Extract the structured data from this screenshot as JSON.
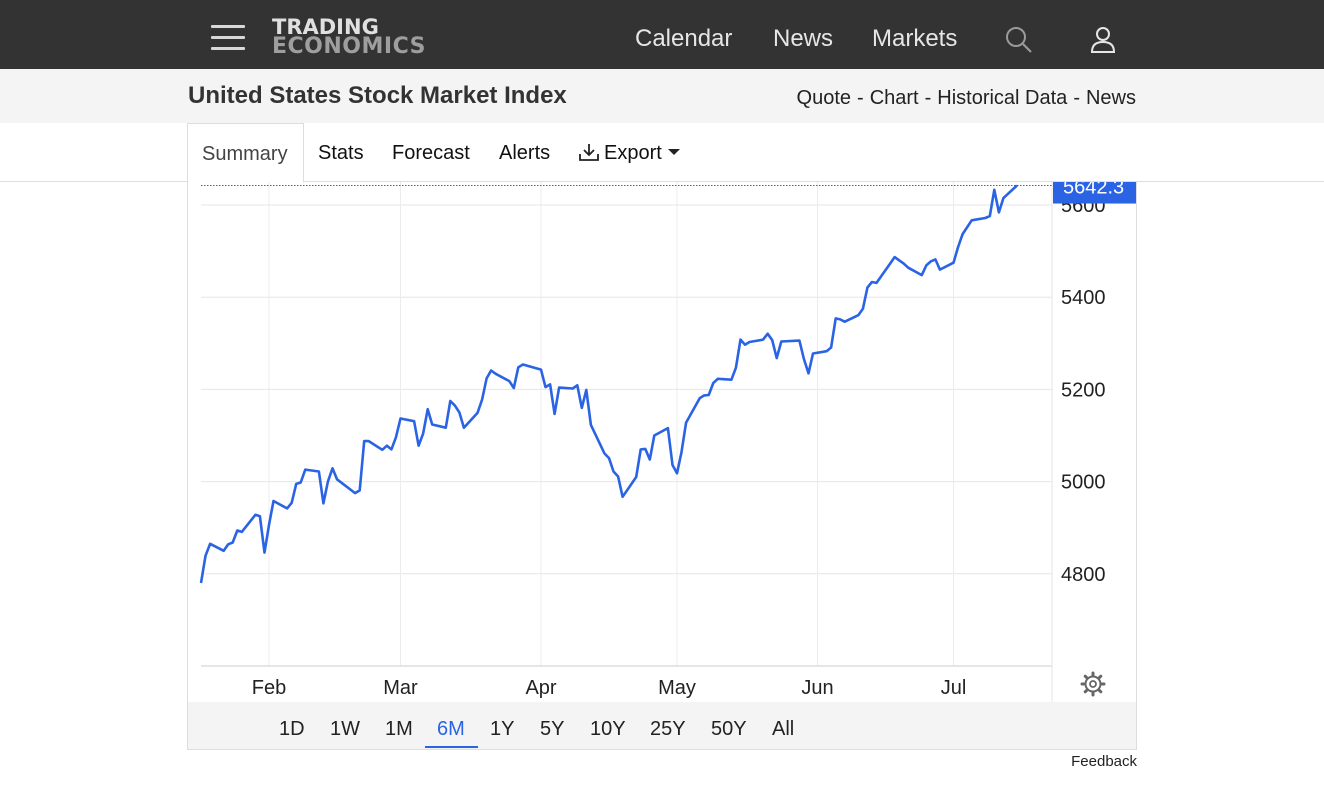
{
  "navbar": {
    "logo_line1": "TRADING",
    "logo_line2": "ECONOMICS",
    "links": [
      "Calendar",
      "News",
      "Markets"
    ]
  },
  "page": {
    "title": "United States Stock Market Index",
    "quick_links": [
      "Quote",
      "Chart",
      "Historical Data",
      "News"
    ]
  },
  "tabs": [
    "Summary",
    "Stats",
    "Forecast",
    "Alerts",
    "Export"
  ],
  "active_tab": "Summary",
  "ranges": [
    "1D",
    "1W",
    "1M",
    "6M",
    "1Y",
    "5Y",
    "10Y",
    "25Y",
    "50Y",
    "All"
  ],
  "active_range": "6M",
  "feedback_label": "Feedback",
  "colors": {
    "line": "#2b63e5",
    "navbar": "#333333",
    "accent": "#2b63e5"
  },
  "chart_data": {
    "type": "line",
    "title": "",
    "xlabel": "",
    "ylabel": "",
    "x_ticks": [
      "Feb",
      "Mar",
      "Apr",
      "May",
      "Jun",
      "Jul"
    ],
    "y_ticks": [
      4800,
      5000,
      5200,
      5400,
      5600
    ],
    "ylim": [
      4600,
      5650
    ],
    "last_value_label": "5642.3",
    "last_value": 5642.3,
    "grid": true,
    "series": [
      {
        "name": "",
        "x": [
          "2024-01-17",
          "2024-01-18",
          "2024-01-19",
          "2024-01-22",
          "2024-01-23",
          "2024-01-24",
          "2024-01-25",
          "2024-01-26",
          "2024-01-29",
          "2024-01-30",
          "2024-01-31",
          "2024-02-01",
          "2024-02-02",
          "2024-02-05",
          "2024-02-06",
          "2024-02-07",
          "2024-02-08",
          "2024-02-09",
          "2024-02-12",
          "2024-02-13",
          "2024-02-14",
          "2024-02-15",
          "2024-02-16",
          "2024-02-20",
          "2024-02-21",
          "2024-02-22",
          "2024-02-23",
          "2024-02-26",
          "2024-02-27",
          "2024-02-28",
          "2024-02-29",
          "2024-03-01",
          "2024-03-04",
          "2024-03-05",
          "2024-03-06",
          "2024-03-07",
          "2024-03-08",
          "2024-03-11",
          "2024-03-12",
          "2024-03-13",
          "2024-03-14",
          "2024-03-15",
          "2024-03-18",
          "2024-03-19",
          "2024-03-20",
          "2024-03-21",
          "2024-03-22",
          "2024-03-25",
          "2024-03-26",
          "2024-03-27",
          "2024-03-28",
          "2024-04-01",
          "2024-04-02",
          "2024-04-03",
          "2024-04-04",
          "2024-04-05",
          "2024-04-08",
          "2024-04-09",
          "2024-04-10",
          "2024-04-11",
          "2024-04-12",
          "2024-04-15",
          "2024-04-16",
          "2024-04-17",
          "2024-04-18",
          "2024-04-19",
          "2024-04-22",
          "2024-04-23",
          "2024-04-24",
          "2024-04-25",
          "2024-04-26",
          "2024-04-29",
          "2024-04-30",
          "2024-05-01",
          "2024-05-02",
          "2024-05-03",
          "2024-05-06",
          "2024-05-07",
          "2024-05-08",
          "2024-05-09",
          "2024-05-10",
          "2024-05-13",
          "2024-05-14",
          "2024-05-15",
          "2024-05-16",
          "2024-05-17",
          "2024-05-20",
          "2024-05-21",
          "2024-05-22",
          "2024-05-23",
          "2024-05-24",
          "2024-05-28",
          "2024-05-29",
          "2024-05-30",
          "2024-05-31",
          "2024-06-03",
          "2024-06-04",
          "2024-06-05",
          "2024-06-06",
          "2024-06-07",
          "2024-06-10",
          "2024-06-11",
          "2024-06-12",
          "2024-06-13",
          "2024-06-14",
          "2024-06-17",
          "2024-06-18",
          "2024-06-20",
          "2024-06-21",
          "2024-06-24",
          "2024-06-25",
          "2024-06-26",
          "2024-06-27",
          "2024-06-28",
          "2024-07-01",
          "2024-07-02",
          "2024-07-03",
          "2024-07-05",
          "2024-07-08",
          "2024-07-09",
          "2024-07-10",
          "2024-07-11",
          "2024-07-12",
          "2024-07-15"
        ],
        "values": [
          4780,
          4839,
          4865,
          4850,
          4864,
          4868,
          4894,
          4891,
          4928,
          4925,
          4846,
          4906,
          4958,
          4942,
          4954,
          4995,
          4998,
          5026,
          5022,
          4953,
          5000,
          5029,
          5005,
          4975,
          4981,
          5088,
          5088,
          5069,
          5078,
          5070,
          5096,
          5137,
          5131,
          5078,
          5104,
          5157,
          5124,
          5117,
          5175,
          5165,
          5150,
          5117,
          5149,
          5178,
          5224,
          5241,
          5234,
          5218,
          5203,
          5248,
          5254,
          5243,
          5205,
          5211,
          5147,
          5204,
          5202,
          5209,
          5160,
          5199,
          5123,
          5061,
          5051,
          5022,
          5011,
          4967,
          5010,
          5070,
          5071,
          5048,
          5100,
          5116,
          5036,
          5018,
          5064,
          5128,
          5181,
          5187,
          5188,
          5214,
          5223,
          5221,
          5247,
          5308,
          5297,
          5303,
          5308,
          5321,
          5307,
          5268,
          5304,
          5306,
          5266,
          5235,
          5278,
          5283,
          5291,
          5354,
          5352,
          5347,
          5361,
          5375,
          5421,
          5433,
          5431,
          5473,
          5487,
          5473,
          5464,
          5448,
          5469,
          5478,
          5482,
          5460,
          5475,
          5509,
          5537,
          5567,
          5572,
          5576,
          5633,
          5584,
          5615,
          5642.3
        ]
      }
    ]
  }
}
